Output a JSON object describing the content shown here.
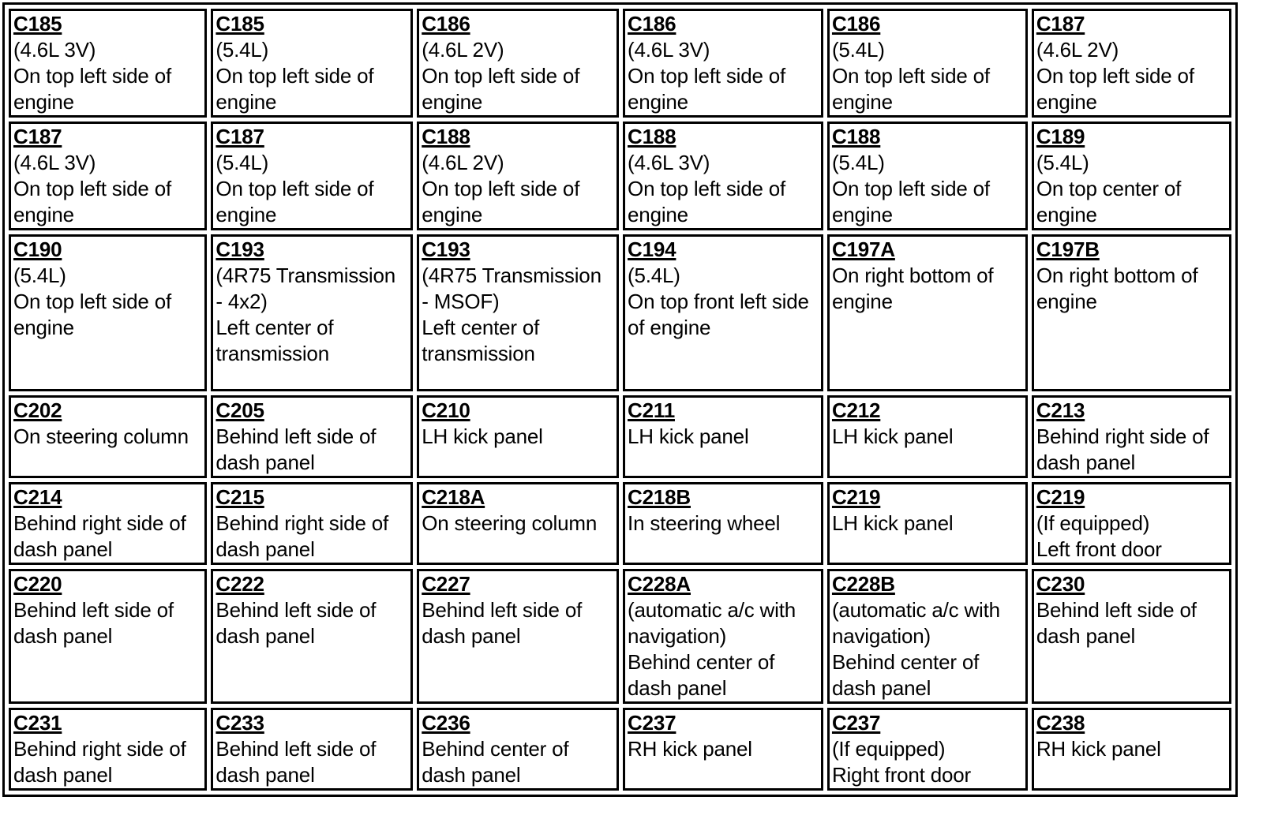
{
  "rows": [
    [
      {
        "id": "C185",
        "spec": "(4.6L 3V)",
        "location": "On top left side of engine"
      },
      {
        "id": "C185",
        "spec": "(5.4L)",
        "location": "On top left side of engine"
      },
      {
        "id": "C186",
        "spec": "(4.6L 2V)",
        "location": "On top left side of engine"
      },
      {
        "id": "C186",
        "spec": "(4.6L 3V)",
        "location": "On top left side of engine"
      },
      {
        "id": "C186",
        "spec": "(5.4L)",
        "location": "On top left side of engine"
      },
      {
        "id": "C187",
        "spec": "(4.6L 2V)",
        "location": "On top left side of engine"
      }
    ],
    [
      {
        "id": "C187",
        "spec": "(4.6L 3V)",
        "location": "On top left side of engine"
      },
      {
        "id": "C187",
        "spec": "(5.4L)",
        "location": "On top left side of engine"
      },
      {
        "id": "C188",
        "spec": "(4.6L 2V)",
        "location": "On top left side of engine"
      },
      {
        "id": "C188",
        "spec": "(4.6L 3V)",
        "location": "On top left side of engine"
      },
      {
        "id": "C188",
        "spec": "(5.4L)",
        "location": "On top left side of engine"
      },
      {
        "id": "C189",
        "spec": "(5.4L)",
        "location": "On top center of engine"
      }
    ],
    [
      {
        "id": "C190",
        "spec": "(5.4L)",
        "location": "On top left side of engine"
      },
      {
        "id": "C193",
        "spec": "(4R75 Transmission - 4x2)",
        "location": "Left center of transmission"
      },
      {
        "id": "C193",
        "spec": "(4R75 Transmission - MSOF)",
        "location": "Left center of transmission"
      },
      {
        "id": "C194",
        "spec": "(5.4L)",
        "location": "On top front left side of engine"
      },
      {
        "id": "C197A",
        "spec": "",
        "location": "On right bottom of engine"
      },
      {
        "id": "C197B",
        "spec": "",
        "location": "On right bottom of engine"
      }
    ],
    [
      {
        "id": "C202",
        "spec": "",
        "location": "On steering column"
      },
      {
        "id": "C205",
        "spec": "",
        "location": "Behind left side of dash panel"
      },
      {
        "id": "C210",
        "spec": "",
        "location": "LH kick panel"
      },
      {
        "id": "C211",
        "spec": "",
        "location": "LH kick panel"
      },
      {
        "id": "C212",
        "spec": "",
        "location": "LH kick panel"
      },
      {
        "id": "C213",
        "spec": "",
        "location": "Behind right side of dash panel"
      }
    ],
    [
      {
        "id": "C214",
        "spec": "",
        "location": "Behind right side of dash panel"
      },
      {
        "id": "C215",
        "spec": "",
        "location": "Behind right side of dash panel"
      },
      {
        "id": "C218A",
        "spec": "",
        "location": "On steering column"
      },
      {
        "id": "C218B",
        "spec": "",
        "location": "In steering wheel"
      },
      {
        "id": "C219",
        "spec": "",
        "location": "LH kick panel"
      },
      {
        "id": "C219",
        "spec": "(If equipped)",
        "location": "Left front door"
      }
    ],
    [
      {
        "id": "C220",
        "spec": "",
        "location": "Behind left side of dash panel"
      },
      {
        "id": "C222",
        "spec": "",
        "location": "Behind left side of dash panel"
      },
      {
        "id": "C227",
        "spec": "",
        "location": "Behind left side of dash panel"
      },
      {
        "id": "C228A",
        "spec": "(automatic a/c with navigation)",
        "location": "Behind center of dash panel"
      },
      {
        "id": "C228B",
        "spec": "(automatic a/c with navigation)",
        "location": "Behind center of dash panel"
      },
      {
        "id": "C230",
        "spec": "",
        "location": "Behind left side of dash panel"
      }
    ],
    [
      {
        "id": "C231",
        "spec": "",
        "location": "Behind right side of dash panel"
      },
      {
        "id": "C233",
        "spec": "",
        "location": "Behind left side of dash panel"
      },
      {
        "id": "C236",
        "spec": "",
        "location": "Behind center of dash panel"
      },
      {
        "id": "C237",
        "spec": "",
        "location": "RH kick panel"
      },
      {
        "id": "C237",
        "spec": "(If equipped)",
        "location": "Right front door"
      },
      {
        "id": "C238",
        "spec": "",
        "location": "RH kick panel"
      }
    ]
  ]
}
